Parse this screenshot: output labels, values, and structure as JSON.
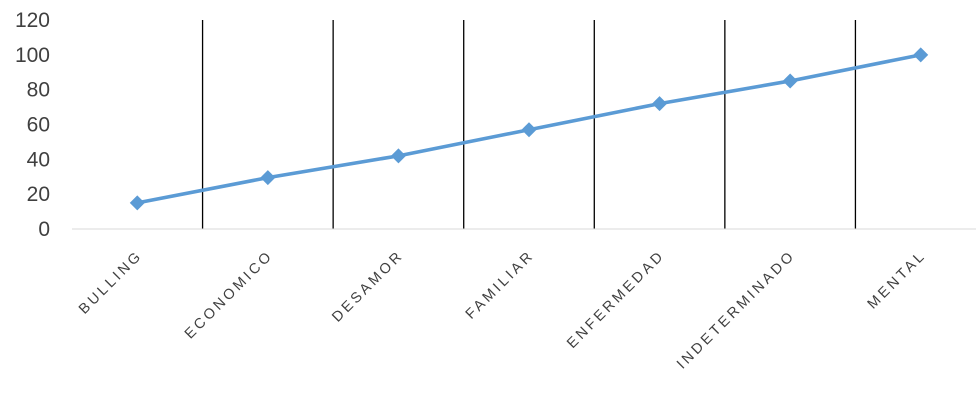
{
  "chart_data": {
    "type": "line",
    "categories": [
      "BULLING",
      "ECONOMICO",
      "DESAMOR",
      "FAMILIAR",
      "ENFERMEDAD",
      "INDETERMINADO",
      "MENTAL"
    ],
    "series": [
      {
        "values": [
          15,
          29.5,
          42,
          57,
          72,
          85,
          100
        ]
      }
    ],
    "yticks": [
      "0",
      "20",
      "40",
      "60",
      "80",
      "100",
      "120"
    ],
    "ylim": [
      0,
      120
    ],
    "grid": "vertical category gridlines",
    "legend": "none",
    "colors": {
      "line": "#5b9bd5",
      "gridline": "#000000",
      "axis": "#d9d9d9",
      "text": "#404040"
    },
    "marker": "diamond"
  }
}
